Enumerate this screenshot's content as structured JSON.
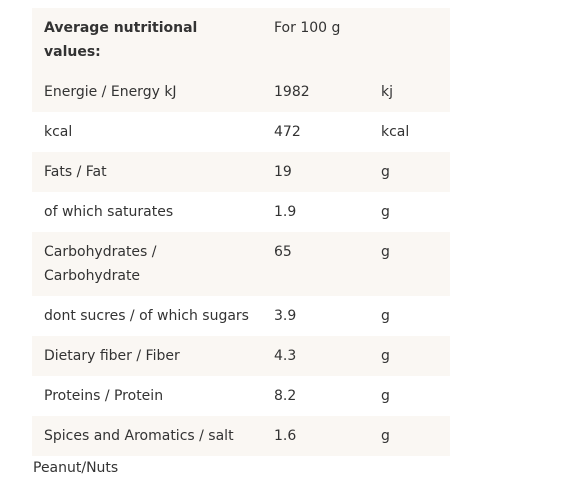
{
  "table": {
    "header": [
      "Average nutritional values:",
      "For 100 g"
    ],
    "rows": [
      [
        "Energie / Energy kJ",
        1982,
        "kj"
      ],
      [
        "kcal",
        472,
        "kcal"
      ],
      [
        "Fats / Fat",
        19,
        "g"
      ],
      [
        "of which saturates",
        1.9,
        "g"
      ],
      [
        "Carbohydrates / Carbohydrate",
        65,
        "g"
      ],
      [
        "dont sucres / of which sugars",
        3.9,
        "g"
      ],
      [
        "Dietary fiber / Fiber",
        4.3,
        "g"
      ],
      [
        "Proteins / Protein",
        8.2,
        "g"
      ],
      [
        "Spices and Aromatics / salt",
        1.6,
        "g"
      ]
    ]
  },
  "footer": "Peanut/Nuts"
}
